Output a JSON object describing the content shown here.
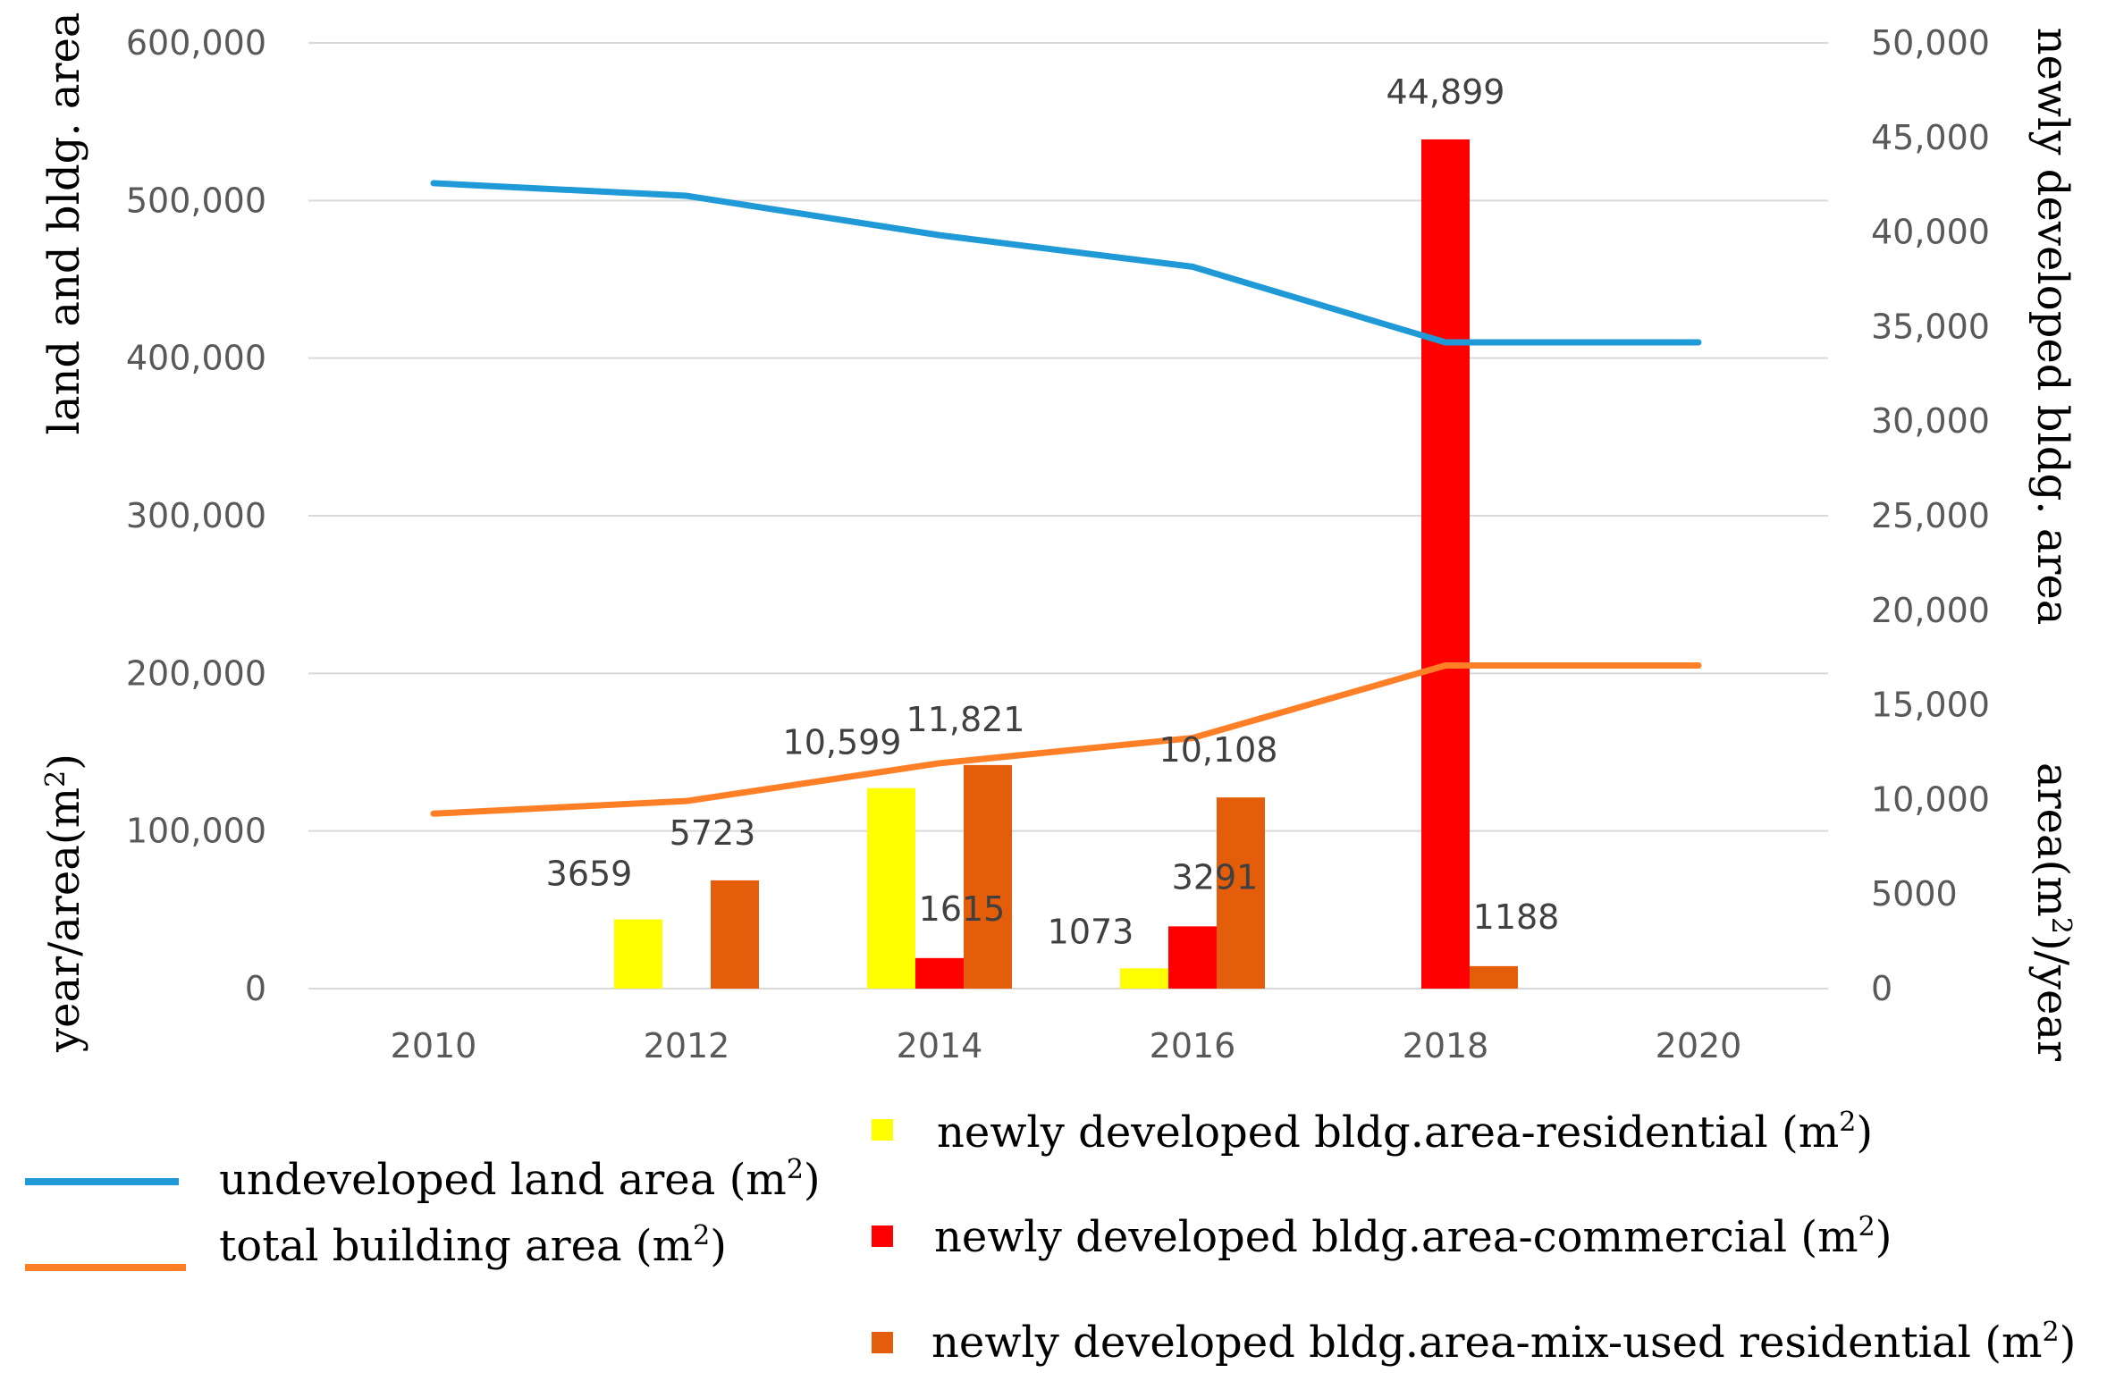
{
  "chart_data": {
    "type": "bar+line",
    "x": [
      2010,
      2012,
      2014,
      2016,
      2018,
      2020
    ],
    "x_tick_labels": [
      "2010",
      "2012",
      "2014",
      "2016",
      "2018",
      "2020"
    ],
    "left_axis": {
      "title": "land and bldg. area",
      "title2": "year/area(m",
      "title2_sup": "2",
      "title2_end": ")",
      "ylim": [
        0,
        600000
      ],
      "ticks": [
        "0",
        "100,000",
        "200,000",
        "300,000",
        "400,000",
        "500,000",
        "600,000"
      ]
    },
    "right_axis": {
      "title": "newly developed bldg. area",
      "title2": "area(m",
      "title2_sup": "2",
      "title2_end": ")/year",
      "ylim": [
        0,
        50000
      ],
      "ticks": [
        "0",
        "5000",
        "10,000",
        "15,000",
        "20,000",
        "25,000",
        "30,000",
        "35,000",
        "40,000",
        "45,000",
        "50,000"
      ]
    },
    "line_series": [
      {
        "name": "undeveloped land area (m",
        "sup": "2",
        "end": ")",
        "axis": "left",
        "color": "#1f9ad6",
        "values": [
          511000,
          503000,
          478000,
          458000,
          410000,
          410000
        ]
      },
      {
        "name": "total building area (m",
        "sup": "2",
        "end": ")",
        "axis": "left",
        "color": "#ff7f27",
        "values": [
          111000,
          119000,
          143000,
          159000,
          205000,
          205000
        ]
      }
    ],
    "bar_series": [
      {
        "name": "newly developed bldg.area-residential (m",
        "sup": "2",
        "end": ")",
        "axis": "right",
        "color": "#ffff00",
        "values": [
          null,
          3659,
          10599,
          1073,
          null,
          null
        ],
        "labels": [
          null,
          "3659",
          "10,599",
          "1073",
          null,
          null
        ]
      },
      {
        "name": "newly developed bldg.area-commercial (m",
        "sup": "2",
        "end": ")",
        "axis": "right",
        "color": "#ff0000",
        "values": [
          null,
          null,
          1615,
          3291,
          44899,
          null
        ],
        "labels": [
          null,
          null,
          "1615",
          "3291",
          "44,899",
          null
        ]
      },
      {
        "name": "newly developed bldg.area-mix-used residential (m",
        "sup": "2",
        "end": ")",
        "axis": "right",
        "color": "#e35d0b",
        "values": [
          null,
          5723,
          11821,
          10108,
          1188,
          null
        ],
        "labels": [
          null,
          "5723",
          "11,821",
          "10,108",
          "1188",
          null
        ]
      }
    ]
  }
}
